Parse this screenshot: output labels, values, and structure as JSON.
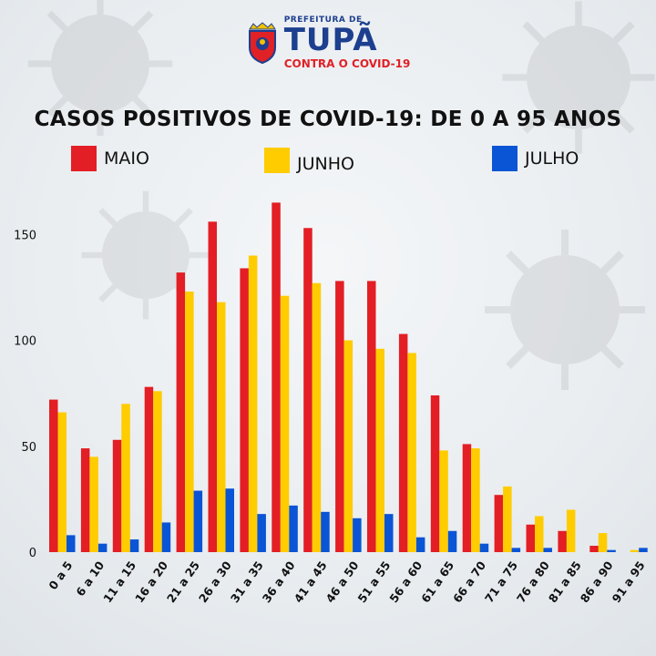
{
  "header": {
    "prefeitura": "PREFEITURA DE",
    "city": "TUPÃ",
    "subtitle": "CONTRA O COVID-19"
  },
  "colors": {
    "maio": "#e31e24",
    "junho": "#ffcc00",
    "julho": "#0a54d6",
    "brand": "#1d3f8f"
  },
  "chart_data": {
    "type": "bar",
    "title": "CASOS POSITIVOS DE COVID-19: DE 0 A 95 ANOS",
    "xlabel": "",
    "ylabel": "",
    "ylim": [
      0,
      170
    ],
    "yticks": [
      0,
      50,
      100,
      150
    ],
    "grid": false,
    "legend_position": "top",
    "categories": [
      "0 a 5",
      "6 a 10",
      "11 a 15",
      "16 a 20",
      "21 a 25",
      "26 a 30",
      "31 a 35",
      "36 a 40",
      "41 a 45",
      "46 a 50",
      "51 a 55",
      "56 a 60",
      "61 a 65",
      "66 a 70",
      "71 a 75",
      "76 a 80",
      "81 a 85",
      "86 a 90",
      "91 a 95"
    ],
    "series": [
      {
        "name": "MAIO",
        "values": [
          72,
          49,
          53,
          78,
          132,
          156,
          134,
          165,
          153,
          128,
          128,
          103,
          74,
          51,
          27,
          13,
          10,
          3,
          0
        ]
      },
      {
        "name": "JUNHO",
        "values": [
          66,
          45,
          70,
          76,
          123,
          118,
          140,
          121,
          127,
          100,
          96,
          94,
          48,
          49,
          31,
          17,
          20,
          9,
          1
        ]
      },
      {
        "name": "JULHO",
        "values": [
          8,
          4,
          6,
          14,
          29,
          30,
          18,
          22,
          19,
          16,
          18,
          7,
          10,
          4,
          2,
          2,
          0,
          1,
          2
        ]
      }
    ]
  }
}
